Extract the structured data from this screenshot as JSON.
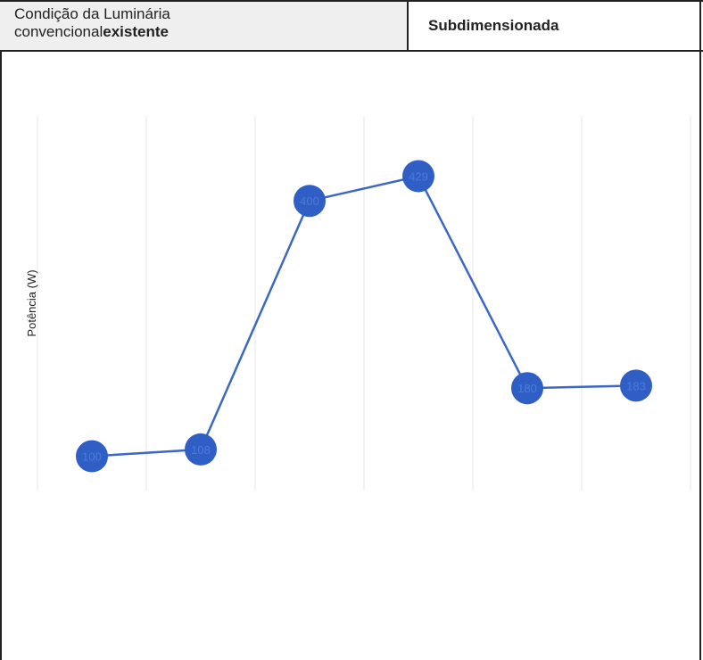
{
  "header": {
    "condition_line1": "Condição da Luminária",
    "condition_line2_prefix": "convencional",
    "condition_line2_bold": "existente",
    "condition_value": "Subdimensionada"
  },
  "chart_data": {
    "type": "line",
    "title": "",
    "xlabel": "",
    "ylabel": "Potência (W)",
    "series": [
      {
        "values": [
          100,
          108,
          400,
          429,
          180,
          183
        ]
      }
    ],
    "grid": "vertical",
    "colors": {
      "line": "#3c68c4",
      "marker": "#2f5fc4",
      "marker_label": "#4a7bd8",
      "grid": "#e4e4e4"
    }
  }
}
